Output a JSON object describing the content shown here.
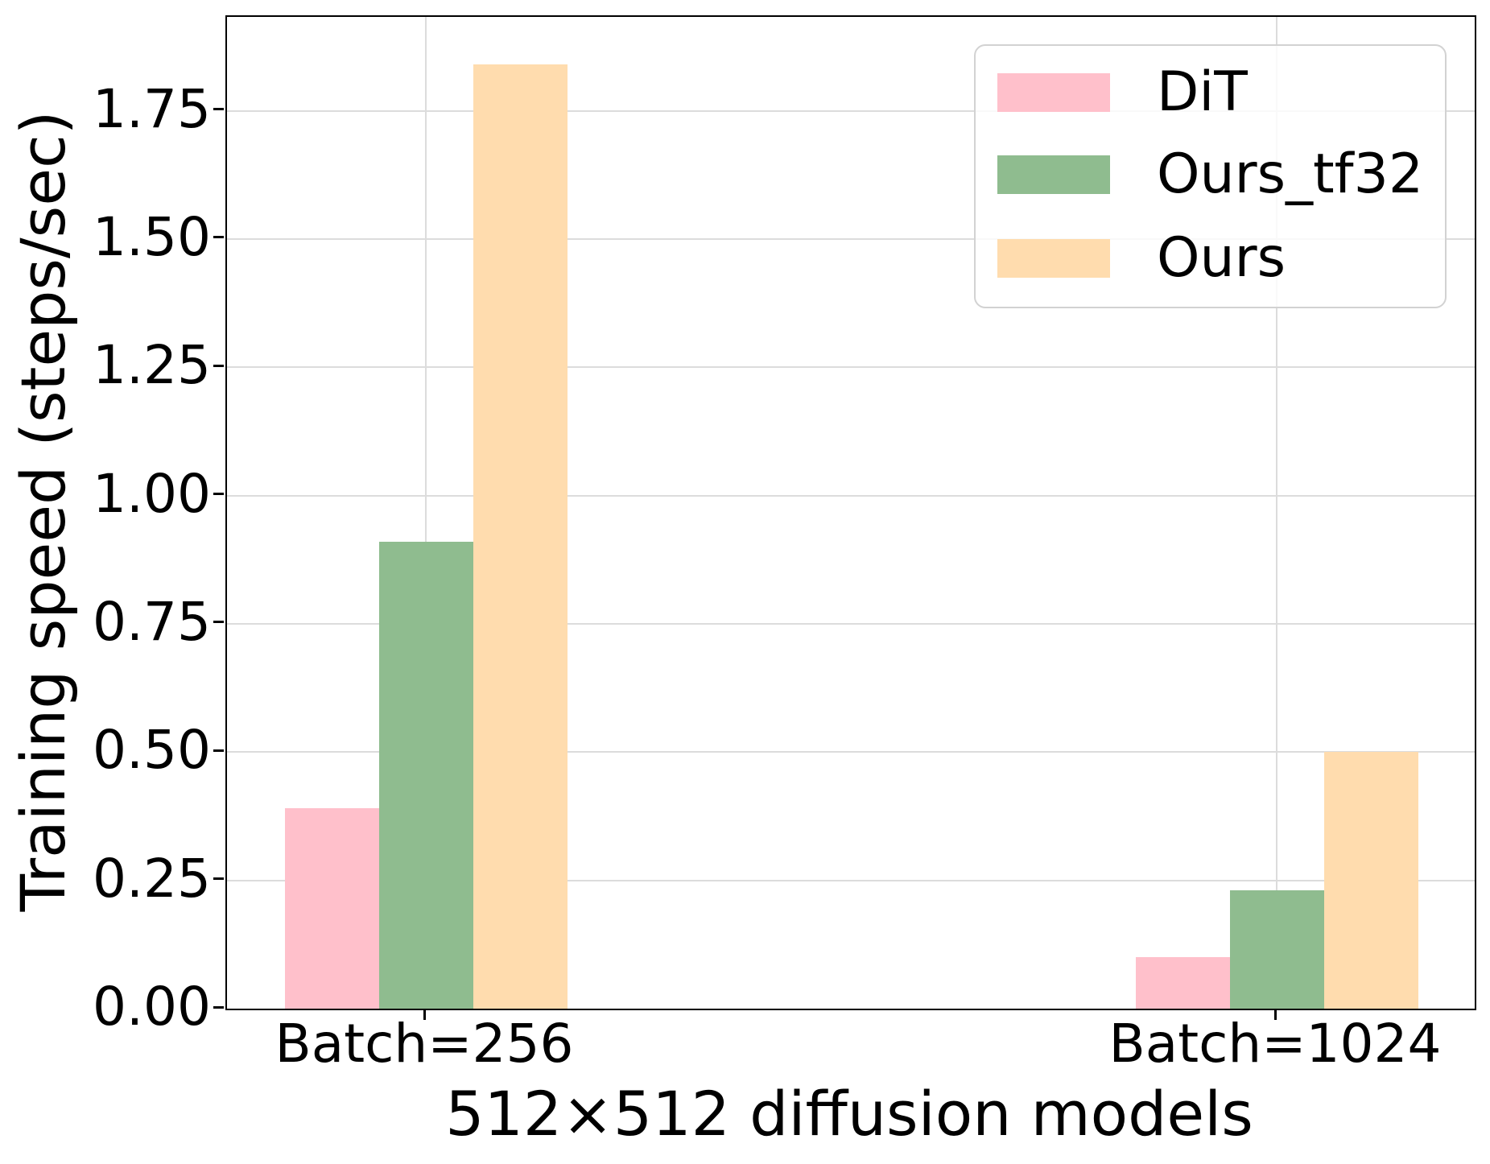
{
  "chart_data": {
    "type": "bar",
    "xlabel": "512×512 diffusion models",
    "ylabel": "Training speed (steps/sec)",
    "categories": [
      "Batch=256",
      "Batch=1024"
    ],
    "series": [
      {
        "name": "DiT",
        "color": "#ffc0cb",
        "values": [
          0.39,
          0.1
        ]
      },
      {
        "name": "Ours_tf32",
        "color": "#8fbc8f",
        "values": [
          0.91,
          0.23
        ]
      },
      {
        "name": "Ours",
        "color": "#ffdcae",
        "values": [
          1.84,
          0.5
        ]
      }
    ],
    "ylim": [
      0,
      1.93
    ],
    "yticks": [
      0.0,
      0.25,
      0.5,
      0.75,
      1.0,
      1.25,
      1.5,
      1.75
    ],
    "ytick_labels": [
      "0.00",
      "0.25",
      "0.50",
      "0.75",
      "1.00",
      "1.25",
      "1.50",
      "1.75"
    ],
    "grid": true,
    "grid_color": "#dcdcdc",
    "legend_position": "upper right"
  }
}
